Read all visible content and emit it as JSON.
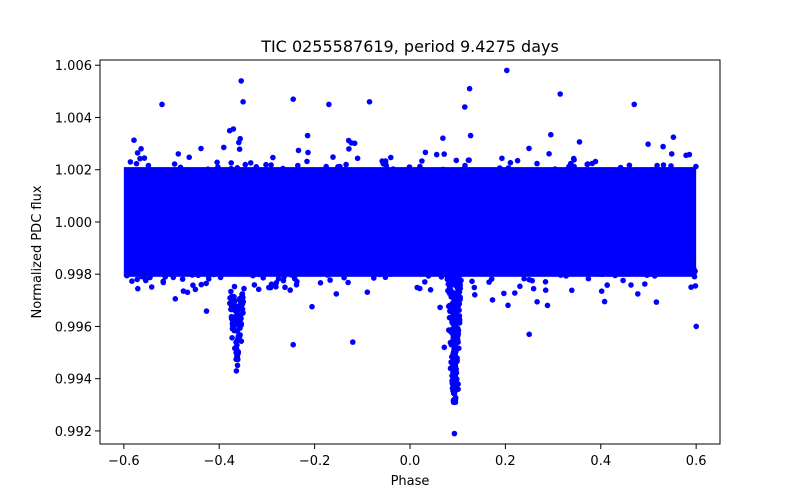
{
  "chart_data": {
    "type": "scatter",
    "title": "TIC 0255587619, period 9.4275 days",
    "xlabel": "Phase",
    "ylabel": "Normalized PDC flux",
    "xlim": [
      -0.65,
      0.65
    ],
    "ylim": [
      0.9915,
      1.0062
    ],
    "xticks": [
      -0.6,
      -0.4,
      -0.2,
      0.0,
      0.2,
      0.4,
      0.6
    ],
    "xtick_labels": [
      "−0.6",
      "−0.4",
      "−0.2",
      "0.0",
      "0.2",
      "0.4",
      "0.6"
    ],
    "yticks": [
      0.992,
      0.994,
      0.996,
      0.998,
      1.0,
      1.002,
      1.004,
      1.006
    ],
    "ytick_labels": [
      "0.992",
      "0.994",
      "0.996",
      "0.998",
      "1.000",
      "1.002",
      "1.004",
      "1.006"
    ],
    "grid": false,
    "marker_color": "#0000ff",
    "series": [
      {
        "description": "Phase-folded light curve; dense band of points spanning phase -0.6 to 0.6 centered on flux 1.000 with scatter of about +/-0.003",
        "band": {
          "x_range": [
            -0.6,
            0.6
          ],
          "center": 1.0,
          "core_halfwidth": 0.0021
        },
        "primary_transit": {
          "phase": 0.093,
          "min_flux": 0.9931,
          "depth_points_to": 0.9919
        },
        "secondary_dip": {
          "phase": -0.363,
          "min_flux": 0.9943
        },
        "outliers": [
          {
            "x": -0.354,
            "y": 1.0054
          },
          {
            "x": 0.203,
            "y": 1.0058
          },
          {
            "x": 0.125,
            "y": 1.0051
          },
          {
            "x": 0.315,
            "y": 1.0049
          },
          {
            "x": -0.52,
            "y": 1.0045
          },
          {
            "x": -0.245,
            "y": 1.0047
          },
          {
            "x": 0.47,
            "y": 1.0045
          },
          {
            "x": -0.085,
            "y": 1.0046
          },
          {
            "x": -0.35,
            "y": 1.0046
          },
          {
            "x": -0.17,
            "y": 1.0045
          },
          {
            "x": 0.115,
            "y": 1.0044
          },
          {
            "x": 0.093,
            "y": 0.9919
          },
          {
            "x": -0.245,
            "y": 0.9953
          },
          {
            "x": -0.12,
            "y": 0.9954
          },
          {
            "x": 0.25,
            "y": 0.9957
          },
          {
            "x": 0.6,
            "y": 0.996
          },
          {
            "x": 0.072,
            "y": 0.9952
          }
        ]
      }
    ]
  }
}
